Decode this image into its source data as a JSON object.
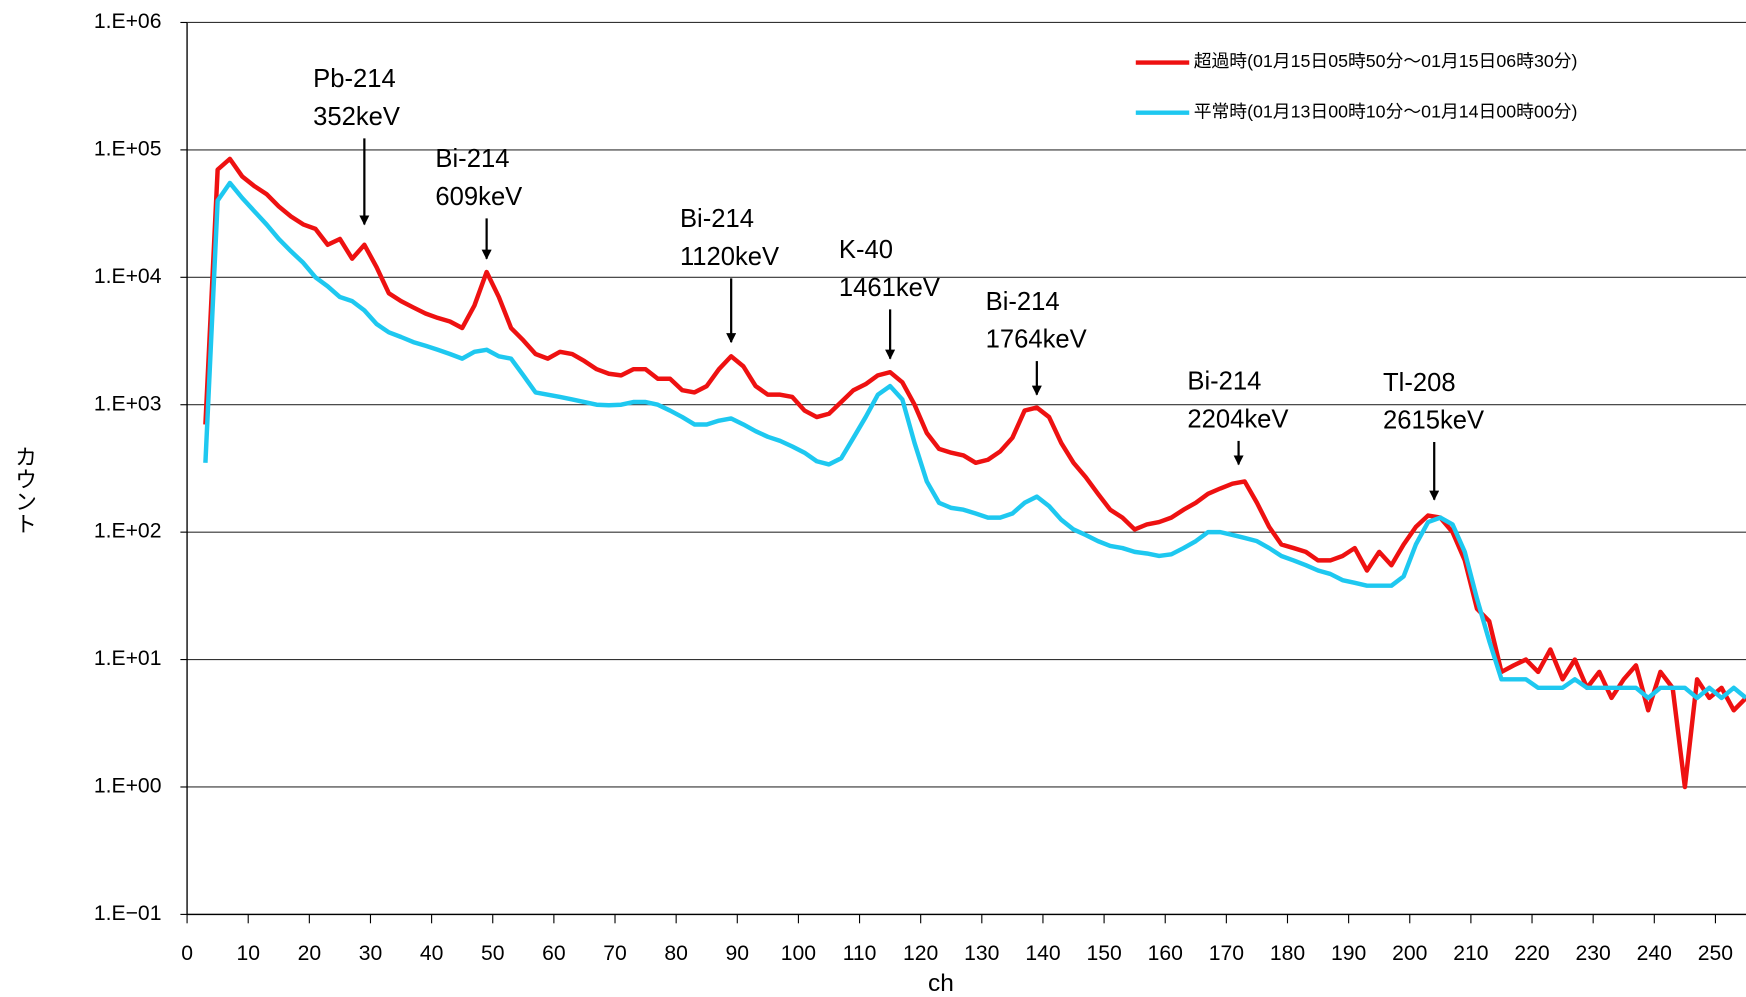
{
  "chart_data": {
    "type": "line",
    "xlabel": "ch",
    "ylabel": "カウント",
    "log_y": true,
    "grid": true,
    "legend": "upper right",
    "xlim": [
      0,
      255
    ],
    "ylim": [
      0.1,
      1000000
    ],
    "xticks": [
      0,
      10,
      20,
      30,
      40,
      50,
      60,
      70,
      80,
      90,
      100,
      110,
      120,
      130,
      140,
      150,
      160,
      170,
      180,
      190,
      200,
      210,
      220,
      230,
      240,
      250
    ],
    "yticks": [
      {
        "value": 0.1,
        "label": "1.E−01"
      },
      {
        "value": 1,
        "label": "1.E+00"
      },
      {
        "value": 10,
        "label": "1.E+01"
      },
      {
        "value": 100,
        "label": "1.E+02"
      },
      {
        "value": 1000,
        "label": "1.E+03"
      },
      {
        "value": 10000,
        "label": "1.E+04"
      },
      {
        "value": 100000,
        "label": "1.E+05"
      },
      {
        "value": 1000000,
        "label": "1.E+06"
      }
    ],
    "x": [
      3,
      5,
      7,
      9,
      11,
      13,
      15,
      17,
      19,
      21,
      23,
      25,
      27,
      29,
      31,
      33,
      35,
      37,
      39,
      41,
      43,
      45,
      47,
      49,
      51,
      53,
      55,
      57,
      59,
      61,
      63,
      65,
      67,
      69,
      71,
      73,
      75,
      77,
      79,
      81,
      83,
      85,
      87,
      89,
      91,
      93,
      95,
      97,
      99,
      101,
      103,
      105,
      107,
      109,
      111,
      113,
      115,
      117,
      119,
      121,
      123,
      125,
      127,
      129,
      131,
      133,
      135,
      137,
      139,
      141,
      143,
      145,
      147,
      149,
      151,
      153,
      155,
      157,
      159,
      161,
      163,
      165,
      167,
      169,
      171,
      173,
      175,
      177,
      179,
      181,
      183,
      185,
      187,
      189,
      191,
      193,
      195,
      197,
      199,
      201,
      203,
      205,
      207,
      209,
      211,
      213,
      215,
      217,
      219,
      221,
      223,
      225,
      227,
      229,
      231,
      233,
      235,
      237,
      239,
      241,
      243,
      245,
      247,
      249,
      251,
      253,
      255
    ],
    "series": [
      {
        "name": "超過時(01月15日05時50分～01月15日06時30分)",
        "color": "#ee1111",
        "values": [
          700,
          70000,
          85000,
          62000,
          52000,
          45000,
          36000,
          30000,
          26000,
          24000,
          18000,
          20000,
          14000,
          18000,
          12000,
          7500,
          6500,
          5800,
          5200,
          4800,
          4500,
          4000,
          6000,
          11000,
          7000,
          4000,
          3200,
          2500,
          2300,
          2600,
          2500,
          2200,
          1900,
          1750,
          1700,
          1900,
          1900,
          1600,
          1600,
          1300,
          1250,
          1400,
          1900,
          2400,
          2000,
          1400,
          1200,
          1200,
          1150,
          900,
          800,
          850,
          1050,
          1300,
          1450,
          1700,
          1800,
          1500,
          1000,
          600,
          450,
          420,
          400,
          350,
          370,
          430,
          550,
          900,
          950,
          800,
          500,
          350,
          270,
          200,
          150,
          130,
          105,
          115,
          120,
          130,
          150,
          170,
          200,
          220,
          240,
          250,
          170,
          110,
          80,
          75,
          70,
          60,
          60,
          65,
          75,
          50,
          70,
          55,
          80,
          110,
          135,
          130,
          100,
          60,
          25,
          20,
          8,
          9,
          10,
          8,
          12,
          7,
          10,
          6,
          8,
          5,
          7,
          9,
          4,
          8,
          6,
          1,
          7,
          5,
          6,
          4,
          5
        ]
      },
      {
        "name": "平常時(01月13日00時10分～01月14日00時00分)",
        "color": "#1ec8f0",
        "values": [
          350,
          40000,
          55000,
          42000,
          33000,
          26000,
          20000,
          16000,
          13000,
          10000,
          8500,
          7000,
          6500,
          5500,
          4300,
          3700,
          3400,
          3100,
          2900,
          2700,
          2500,
          2300,
          2600,
          2700,
          2400,
          2300,
          1700,
          1250,
          1200,
          1150,
          1100,
          1050,
          1000,
          990,
          1000,
          1050,
          1050,
          1000,
          900,
          800,
          700,
          700,
          750,
          780,
          700,
          620,
          560,
          520,
          470,
          420,
          360,
          340,
          380,
          550,
          800,
          1200,
          1400,
          1100,
          500,
          250,
          170,
          155,
          150,
          140,
          130,
          130,
          140,
          170,
          190,
          160,
          125,
          105,
          95,
          85,
          78,
          75,
          70,
          68,
          65,
          67,
          75,
          85,
          100,
          100,
          95,
          90,
          85,
          75,
          65,
          60,
          55,
          50,
          47,
          42,
          40,
          38,
          38,
          38,
          45,
          80,
          120,
          130,
          115,
          70,
          30,
          14,
          7,
          7,
          7,
          6,
          6,
          6,
          7,
          6,
          6,
          6,
          6,
          6,
          5,
          6,
          6,
          6,
          5,
          6,
          5,
          6,
          5
        ]
      }
    ],
    "annotations": [
      {
        "label": "Pb-214",
        "energy": "352keV",
        "x": 29,
        "y": 26000,
        "from": 123000
      },
      {
        "label": "Bi-214",
        "energy": "609keV",
        "x": 49,
        "y": 14000,
        "from": 29000
      },
      {
        "label": "Bi-214",
        "energy": "1120keV",
        "x": 89,
        "y": 3100,
        "from": 9800
      },
      {
        "label": "K-40",
        "energy": "1461keV",
        "x": 115,
        "y": 2300,
        "from": 5600
      },
      {
        "label": "Bi-214",
        "energy": "1764keV",
        "x": 139,
        "y": 1200,
        "from": 2200
      },
      {
        "label": "Bi-214",
        "energy": "2204keV",
        "x": 172,
        "y": 340,
        "from": 520
      },
      {
        "label": "Tl-208",
        "energy": "2615keV",
        "x": 204,
        "y": 180,
        "from": 510
      }
    ]
  }
}
